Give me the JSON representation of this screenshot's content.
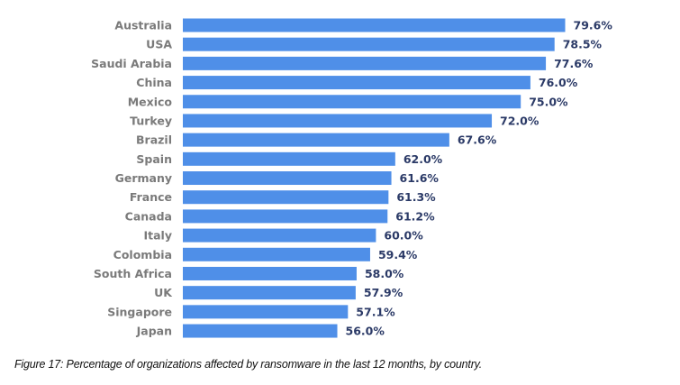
{
  "chart_data": {
    "type": "bar",
    "orientation": "horizontal",
    "categories": [
      "Australia",
      "USA",
      "Saudi Arabia",
      "China",
      "Mexico",
      "Turkey",
      "Brazil",
      "Spain",
      "Germany",
      "France",
      "Canada",
      "Italy",
      "Colombia",
      "South Africa",
      "UK",
      "Singapore",
      "Japan"
    ],
    "values": [
      79.6,
      78.5,
      77.6,
      76.0,
      75.0,
      72.0,
      67.6,
      62.0,
      61.6,
      61.3,
      61.2,
      60.0,
      59.4,
      58.0,
      57.9,
      57.1,
      56.0
    ],
    "data_labels": [
      "79.6%",
      "78.5%",
      "77.6%",
      "76.0%",
      "75.0%",
      "72.0%",
      "67.6%",
      "62.0%",
      "61.6%",
      "61.3%",
      "61.2%",
      "60.0%",
      "59.4%",
      "58.0%",
      "57.9%",
      "57.1%",
      "56.0%"
    ],
    "unit": "%",
    "xlim": [
      40,
      85
    ],
    "grid": false,
    "bar_color": "#4f8fe8",
    "label_color": "#7a7a7a",
    "value_color": "#2b3a67"
  },
  "caption": "Figure 17: Percentage of organizations affected by ransomware in the last 12 months, by country."
}
